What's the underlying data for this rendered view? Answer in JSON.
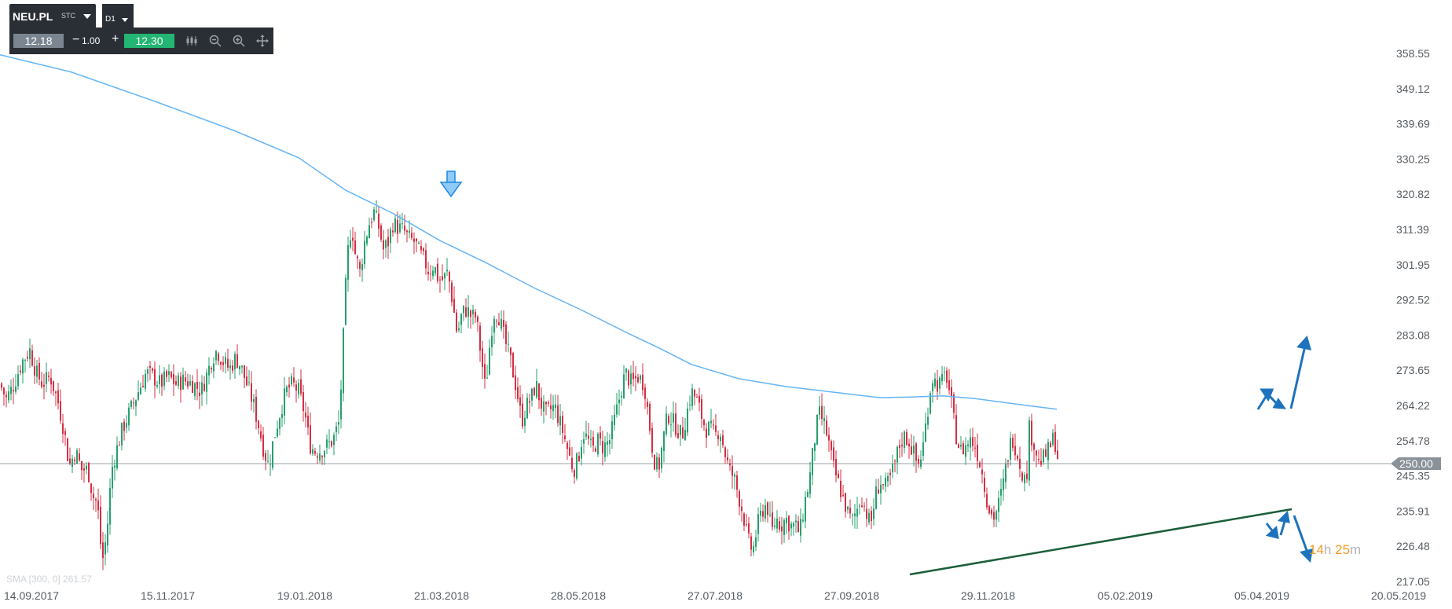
{
  "toolbar": {
    "symbol": "NEU.PL",
    "instrument_type": "STC",
    "timeframe": "D1",
    "bid": "12.18",
    "minus": "−",
    "spread": "1.00",
    "plus": "+",
    "ask": "12.30",
    "icons": [
      "candles-icon",
      "zoom-out-icon",
      "zoom-in-icon",
      "move-icon"
    ]
  },
  "countdown": {
    "hours": "14",
    "h_unit": "h",
    "minutes": "25",
    "m_unit": "m"
  },
  "colors": {
    "up": "#26a06d",
    "down": "#d32f43",
    "sma": "#64b5f6",
    "support": "#1b5e3a",
    "annotation": "#1e73be",
    "price_tag": "#8a9199"
  },
  "chart_data": {
    "type": "candlestick",
    "indicator_label": "SMA [300, 0] 261.57",
    "current_price": 250.0,
    "current_price_label": "250.00",
    "y_ticks": [
      "358.55",
      "349.12",
      "339.69",
      "330.25",
      "320.82",
      "311.39",
      "301.95",
      "292.52",
      "283.08",
      "273.65",
      "264.22",
      "254.78",
      "245.35",
      "235.91",
      "226.48",
      "217.05"
    ],
    "x_ticks": [
      "14.09.2017",
      "15.11.2017",
      "19.01.2018",
      "21.03.2018",
      "28.05.2018",
      "27.07.2018",
      "27.09.2018",
      "29.11.2018",
      "05.02.2019",
      "05.04.2019",
      "20.05.2019"
    ],
    "ylim": [
      217.05,
      358.55
    ],
    "close_path": [
      [
        0,
        270
      ],
      [
        8,
        266
      ],
      [
        18,
        270
      ],
      [
        28,
        276
      ],
      [
        38,
        279
      ],
      [
        46,
        273
      ],
      [
        54,
        270
      ],
      [
        64,
        272
      ],
      [
        74,
        265
      ],
      [
        82,
        257
      ],
      [
        88,
        248
      ],
      [
        96,
        252
      ],
      [
        104,
        247
      ],
      [
        112,
        247
      ],
      [
        118,
        240
      ],
      [
        124,
        238
      ],
      [
        130,
        222
      ],
      [
        136,
        230
      ],
      [
        142,
        247
      ],
      [
        148,
        252
      ],
      [
        156,
        258
      ],
      [
        164,
        262
      ],
      [
        172,
        266
      ],
      [
        180,
        270
      ],
      [
        186,
        273
      ],
      [
        194,
        272
      ],
      [
        204,
        270
      ],
      [
        214,
        272
      ],
      [
        224,
        270
      ],
      [
        234,
        271
      ],
      [
        246,
        270
      ],
      [
        256,
        268
      ],
      [
        264,
        273
      ],
      [
        270,
        277
      ],
      [
        276,
        279
      ],
      [
        284,
        276
      ],
      [
        292,
        274
      ],
      [
        300,
        277
      ],
      [
        306,
        275
      ],
      [
        314,
        270
      ],
      [
        322,
        265
      ],
      [
        330,
        258
      ],
      [
        336,
        252
      ],
      [
        342,
        248
      ],
      [
        348,
        255
      ],
      [
        356,
        262
      ],
      [
        364,
        268
      ],
      [
        372,
        270
      ],
      [
        380,
        268
      ],
      [
        388,
        262
      ],
      [
        394,
        254
      ],
      [
        400,
        252
      ],
      [
        406,
        252
      ],
      [
        414,
        253
      ],
      [
        424,
        255
      ],
      [
        432,
        260
      ],
      [
        436,
        278
      ],
      [
        440,
        296
      ],
      [
        444,
        309
      ],
      [
        448,
        312
      ],
      [
        452,
        305
      ],
      [
        458,
        300
      ],
      [
        464,
        308
      ],
      [
        470,
        313
      ],
      [
        476,
        316
      ],
      [
        482,
        312
      ],
      [
        488,
        306
      ],
      [
        494,
        308
      ],
      [
        500,
        313
      ],
      [
        506,
        312
      ],
      [
        514,
        311
      ],
      [
        520,
        309
      ],
      [
        528,
        308
      ],
      [
        534,
        305
      ],
      [
        540,
        303
      ],
      [
        546,
        300
      ],
      [
        552,
        302
      ],
      [
        558,
        298
      ],
      [
        564,
        298
      ],
      [
        570,
        300
      ],
      [
        576,
        292
      ],
      [
        582,
        283
      ],
      [
        588,
        289
      ],
      [
        594,
        290
      ],
      [
        600,
        288
      ],
      [
        606,
        288
      ],
      [
        612,
        278
      ],
      [
        618,
        268
      ],
      [
        622,
        278
      ],
      [
        628,
        289
      ],
      [
        634,
        289
      ],
      [
        642,
        282
      ],
      [
        650,
        276
      ],
      [
        658,
        268
      ],
      [
        664,
        260
      ],
      [
        670,
        264
      ],
      [
        676,
        266
      ],
      [
        682,
        270
      ],
      [
        688,
        265
      ],
      [
        694,
        262
      ],
      [
        700,
        263
      ],
      [
        706,
        264
      ],
      [
        712,
        260
      ],
      [
        718,
        256
      ],
      [
        724,
        251
      ],
      [
        730,
        247
      ],
      [
        736,
        250
      ],
      [
        742,
        257
      ],
      [
        748,
        255
      ],
      [
        754,
        252
      ],
      [
        760,
        255
      ],
      [
        768,
        253
      ],
      [
        776,
        255
      ],
      [
        784,
        262
      ],
      [
        790,
        268
      ],
      [
        796,
        273
      ],
      [
        804,
        270
      ],
      [
        812,
        272
      ],
      [
        820,
        270
      ],
      [
        826,
        260
      ],
      [
        832,
        250
      ],
      [
        838,
        247
      ],
      [
        844,
        255
      ],
      [
        850,
        262
      ],
      [
        856,
        260
      ],
      [
        862,
        258
      ],
      [
        868,
        256
      ],
      [
        874,
        262
      ],
      [
        880,
        268
      ],
      [
        886,
        266
      ],
      [
        892,
        262
      ],
      [
        898,
        258
      ],
      [
        904,
        258
      ],
      [
        910,
        256
      ],
      [
        916,
        258
      ],
      [
        922,
        252
      ],
      [
        928,
        247
      ],
      [
        934,
        245
      ],
      [
        940,
        240
      ],
      [
        946,
        235
      ],
      [
        952,
        228
      ],
      [
        958,
        225
      ],
      [
        964,
        232
      ],
      [
        970,
        236
      ],
      [
        976,
        238
      ],
      [
        982,
        230
      ],
      [
        988,
        234
      ],
      [
        994,
        232
      ],
      [
        1000,
        234
      ],
      [
        1006,
        232
      ],
      [
        1012,
        232
      ],
      [
        1018,
        230
      ],
      [
        1024,
        238
      ],
      [
        1030,
        244
      ],
      [
        1036,
        254
      ],
      [
        1042,
        262
      ],
      [
        1048,
        260
      ],
      [
        1054,
        255
      ],
      [
        1060,
        248
      ],
      [
        1066,
        244
      ],
      [
        1072,
        240
      ],
      [
        1078,
        236
      ],
      [
        1084,
        233
      ],
      [
        1090,
        236
      ],
      [
        1096,
        240
      ],
      [
        1102,
        236
      ],
      [
        1108,
        232
      ],
      [
        1114,
        240
      ],
      [
        1120,
        244
      ],
      [
        1126,
        242
      ],
      [
        1132,
        244
      ],
      [
        1138,
        248
      ],
      [
        1144,
        253
      ],
      [
        1150,
        256
      ],
      [
        1156,
        255
      ],
      [
        1162,
        252
      ],
      [
        1168,
        248
      ],
      [
        1174,
        252
      ],
      [
        1180,
        262
      ],
      [
        1186,
        272
      ],
      [
        1192,
        270
      ],
      [
        1198,
        270
      ],
      [
        1204,
        273
      ],
      [
        1210,
        266
      ],
      [
        1216,
        257
      ],
      [
        1222,
        252
      ],
      [
        1228,
        253
      ],
      [
        1234,
        255
      ],
      [
        1240,
        254
      ],
      [
        1246,
        250
      ],
      [
        1252,
        244
      ],
      [
        1258,
        237
      ],
      [
        1264,
        234
      ],
      [
        1270,
        237
      ],
      [
        1276,
        242
      ],
      [
        1282,
        250
      ],
      [
        1288,
        256
      ],
      [
        1294,
        252
      ],
      [
        1300,
        247
      ],
      [
        1306,
        243
      ],
      [
        1310,
        258
      ],
      [
        1316,
        254
      ],
      [
        1322,
        249
      ],
      [
        1328,
        250
      ],
      [
        1334,
        252
      ],
      [
        1340,
        255
      ],
      [
        1344,
        254
      ],
      [
        1348,
        247
      ]
    ],
    "sma_300": [
      [
        0,
        358.2
      ],
      [
        90,
        353.6
      ],
      [
        200,
        345.5
      ],
      [
        300,
        337.7
      ],
      [
        380,
        330.6
      ],
      [
        440,
        321.9
      ],
      [
        500,
        315.7
      ],
      [
        560,
        308.4
      ],
      [
        620,
        302.3
      ],
      [
        680,
        295.7
      ],
      [
        740,
        289.8
      ],
      [
        800,
        283.5
      ],
      [
        840,
        279.5
      ],
      [
        880,
        275.2
      ],
      [
        940,
        271.4
      ],
      [
        1000,
        269.3
      ],
      [
        1060,
        267.8
      ],
      [
        1120,
        266.3
      ],
      [
        1160,
        266.5
      ],
      [
        1200,
        266.8
      ],
      [
        1240,
        266.1
      ],
      [
        1300,
        264.4
      ],
      [
        1345,
        263.2
      ]
    ]
  }
}
